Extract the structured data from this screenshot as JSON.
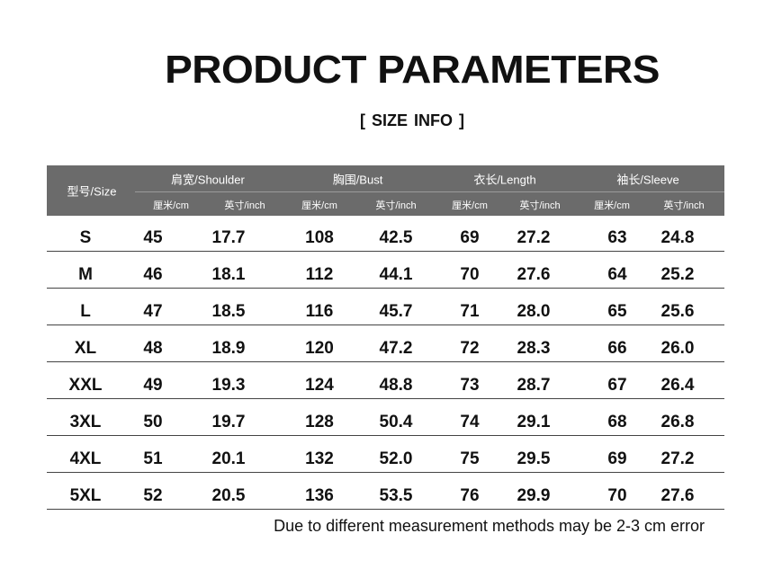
{
  "header": {
    "title": "PRODUCT PARAMETERS",
    "subtitle": "[ SIZE  INFO ]"
  },
  "table": {
    "size_header": "型号/Size",
    "groups": [
      {
        "label": "肩宽/Shoulder",
        "units": [
          "厘米/cm",
          "英寸/inch"
        ]
      },
      {
        "label": "胸围/Bust",
        "units": [
          "厘米/cm",
          "英寸/inch"
        ]
      },
      {
        "label": "衣长/Length",
        "units": [
          "厘米/cm",
          "英寸/inch"
        ]
      },
      {
        "label": "袖长/Sleeve",
        "units": [
          "厘米/cm",
          "英寸/inch"
        ]
      }
    ],
    "rows": [
      [
        "S",
        "45",
        "17.7",
        "108",
        "42.5",
        "69",
        "27.2",
        "63",
        "24.8"
      ],
      [
        "M",
        "46",
        "18.1",
        "112",
        "44.1",
        "70",
        "27.6",
        "64",
        "25.2"
      ],
      [
        "L",
        "47",
        "18.5",
        "116",
        "45.7",
        "71",
        "28.0",
        "65",
        "25.6"
      ],
      [
        "XL",
        "48",
        "18.9",
        "120",
        "47.2",
        "72",
        "28.3",
        "66",
        "26.0"
      ],
      [
        "XXL",
        "49",
        "19.3",
        "124",
        "48.8",
        "73",
        "28.7",
        "67",
        "26.4"
      ],
      [
        "3XL",
        "50",
        "19.7",
        "128",
        "50.4",
        "74",
        "29.1",
        "68",
        "26.8"
      ],
      [
        "4XL",
        "51",
        "20.1",
        "132",
        "52.0",
        "75",
        "29.5",
        "69",
        "27.2"
      ],
      [
        "5XL",
        "52",
        "20.5",
        "136",
        "53.5",
        "76",
        "29.9",
        "70",
        "27.6"
      ]
    ]
  },
  "note": "Due to different measurement methods may be 2-3 cm error"
}
